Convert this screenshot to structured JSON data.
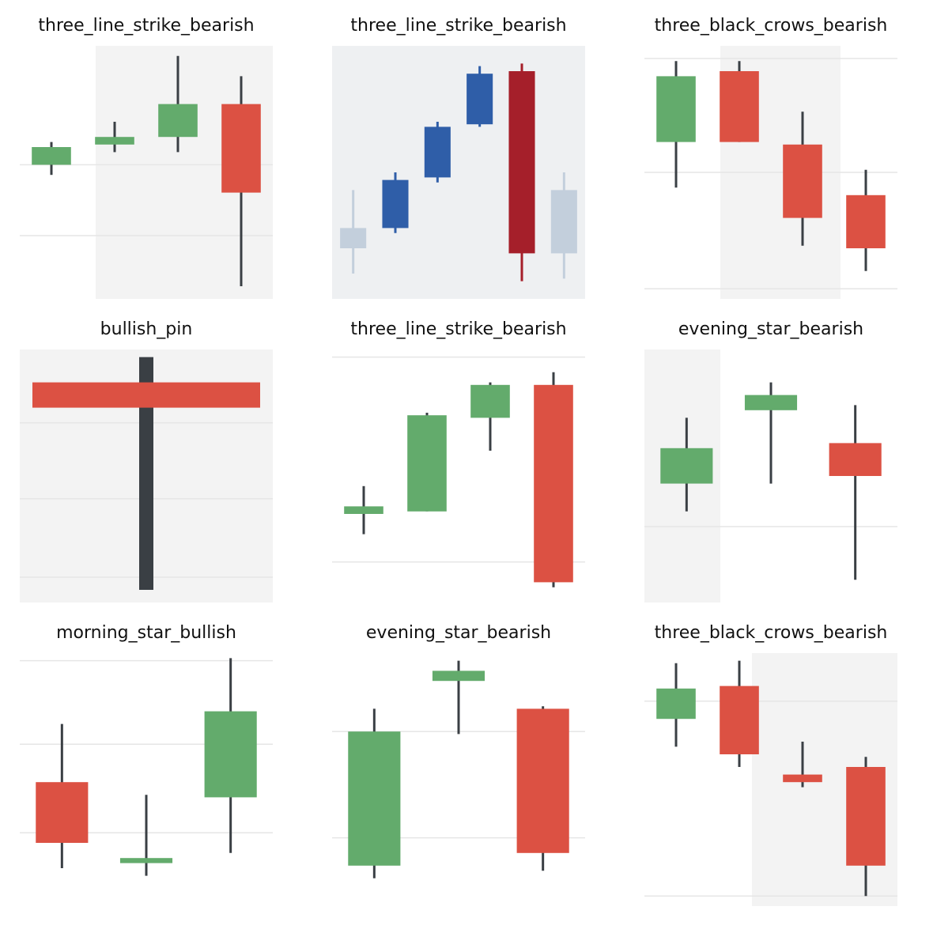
{
  "colors": {
    "bull": "#63ab6c",
    "bear": "#dc5143",
    "wick": "#3a3f44",
    "grid": "#e6e6e6",
    "band": "#f3f3f3",
    "blue_bull": "#2f5ea8",
    "dark_bear": "#a51f2a",
    "faded": "#c3cfdc"
  },
  "chart_data": [
    {
      "type": "candlestick",
      "title": "three_line_strike_bearish",
      "ylim": [
        0,
        100
      ],
      "grid_y": [
        53,
        25
      ],
      "shade": [
        [
          0.7,
          4.6
        ]
      ],
      "candles": [
        {
          "open": 53,
          "high": 62,
          "low": 49,
          "close": 60
        },
        {
          "open": 61,
          "high": 70,
          "low": 58,
          "close": 64
        },
        {
          "open": 64,
          "high": 96,
          "low": 58,
          "close": 77
        },
        {
          "open": 77,
          "high": 88,
          "low": 5,
          "close": 42
        }
      ]
    },
    {
      "type": "candlestick",
      "title": "three_line_strike_bearish",
      "ylim": [
        0,
        100
      ],
      "grid_y": [],
      "background": "#eef0f2",
      "candles": [
        {
          "open": 20,
          "high": 43,
          "low": 10,
          "close": 28,
          "color": "faded",
          "wick": "faded"
        },
        {
          "open": 28,
          "high": 50,
          "low": 26,
          "close": 47,
          "color": "blue_bull",
          "wick": "blue_bull"
        },
        {
          "open": 48,
          "high": 70,
          "low": 46,
          "close": 68,
          "color": "blue_bull",
          "wick": "blue_bull"
        },
        {
          "open": 69,
          "high": 92,
          "low": 68,
          "close": 89,
          "color": "blue_bull",
          "wick": "blue_bull"
        },
        {
          "open": 90,
          "high": 93,
          "low": 7,
          "close": 18,
          "color": "dark_bear",
          "wick": "dark_bear"
        },
        {
          "open": 18,
          "high": 50,
          "low": 8,
          "close": 43,
          "color": "faded",
          "wick": "faded"
        }
      ]
    },
    {
      "type": "candlestick",
      "title": "three_black_crows_bearish",
      "ylim": [
        0,
        100
      ],
      "grid_y": [
        95,
        50,
        4
      ],
      "shade": [
        [
          0.7,
          2.6
        ]
      ],
      "candles": [
        {
          "open": 62,
          "high": 94,
          "low": 44,
          "close": 88
        },
        {
          "open": 90,
          "high": 94,
          "low": 62,
          "close": 62
        },
        {
          "open": 61,
          "high": 74,
          "low": 21,
          "close": 32
        },
        {
          "open": 41,
          "high": 51,
          "low": 11,
          "close": 20
        }
      ]
    },
    {
      "type": "candlestick",
      "title": "bullish_pin",
      "ylim": [
        0,
        100
      ],
      "grid_y": [
        71,
        41,
        10
      ],
      "shade": [
        [
          -1,
          3
        ]
      ],
      "thick_wick": true,
      "candles": [
        {
          "open": 87,
          "high": 97,
          "low": 5,
          "close": 77
        }
      ],
      "band_width": 0.9
    },
    {
      "type": "candlestick",
      "title": "three_line_strike_bearish",
      "ylim": [
        0,
        100
      ],
      "grid_y": [
        97,
        16
      ],
      "candles": [
        {
          "open": 35,
          "high": 46,
          "low": 27,
          "close": 38
        },
        {
          "open": 36,
          "high": 75,
          "low": 36,
          "close": 74
        },
        {
          "open": 73,
          "high": 87,
          "low": 60,
          "close": 86
        },
        {
          "open": 86,
          "high": 91,
          "low": 6,
          "close": 8
        }
      ]
    },
    {
      "type": "candlestick",
      "title": "evening_star_bearish",
      "ylim": [
        0,
        100
      ],
      "grid_y": [
        30
      ],
      "shade": [
        [
          -1,
          0.4
        ],
        [
          2.6,
          4
        ]
      ],
      "candles": [
        {
          "open": 47,
          "high": 73,
          "low": 36,
          "close": 61
        },
        {
          "open": 76,
          "high": 87,
          "low": 47,
          "close": 82
        },
        {
          "open": 63,
          "high": 78,
          "low": 9,
          "close": 50
        }
      ]
    },
    {
      "type": "candlestick",
      "title": "morning_star_bullish",
      "ylim": [
        0,
        100
      ],
      "grid_y": [
        97,
        64,
        29
      ],
      "candles": [
        {
          "open": 49,
          "high": 72,
          "low": 15,
          "close": 25
        },
        {
          "open": 17,
          "high": 44,
          "low": 12,
          "close": 19
        },
        {
          "open": 43,
          "high": 98,
          "low": 21,
          "close": 77
        }
      ]
    },
    {
      "type": "candlestick",
      "title": "evening_star_bearish",
      "ylim": [
        0,
        100
      ],
      "grid_y": [
        69,
        27
      ],
      "candles": [
        {
          "open": 16,
          "high": 78,
          "low": 11,
          "close": 69
        },
        {
          "open": 89,
          "high": 97,
          "low": 68,
          "close": 93
        },
        {
          "open": 78,
          "high": 79,
          "low": 14,
          "close": 21
        }
      ]
    },
    {
      "type": "candlestick",
      "title": "three_black_crows_bearish",
      "ylim": [
        0,
        100
      ],
      "grid_y": [
        81,
        4
      ],
      "shade": [
        [
          1.2,
          4
        ]
      ],
      "candles": [
        {
          "open": 74,
          "high": 96,
          "low": 63,
          "close": 86
        },
        {
          "open": 87,
          "high": 97,
          "low": 55,
          "close": 60
        },
        {
          "open": 52,
          "high": 65,
          "low": 47,
          "close": 49
        },
        {
          "open": 55,
          "high": 59,
          "low": 4,
          "close": 16
        }
      ]
    }
  ]
}
